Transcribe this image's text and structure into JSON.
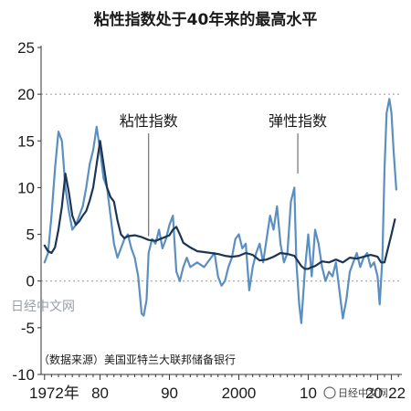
{
  "chart_data": {
    "type": "line",
    "title": "粘性指数处于40年来的最高水平",
    "source": "（数据来源）美国亚特兰大联邦储备银行",
    "ylim": [
      -10,
      25
    ],
    "xlim": [
      1971.5,
      2023.5
    ],
    "y_ticks": [
      -10,
      -5,
      0,
      5,
      10,
      15,
      20,
      25
    ],
    "y_tick_labels": [
      "-10",
      "-5",
      "0",
      "5",
      "10",
      "15",
      "20",
      "25"
    ],
    "x_ticks": [
      1972,
      1980,
      1990,
      2000,
      2010,
      2020,
      2022
    ],
    "x_tick_labels": [
      "1972年",
      "80",
      "90",
      "2000",
      "10",
      "20",
      "22"
    ],
    "grid": "horizontal dotted at 20 and 0",
    "annotations": [
      {
        "text": "粘性指数",
        "x": 1987,
        "y": 4.8
      },
      {
        "text": "弹性指数",
        "x": 2008.5,
        "y": 11.5
      }
    ],
    "colors": {
      "sticky": "#1c3557",
      "flexible": "#5b8fc0",
      "grid": "#999999",
      "axis": "#333333"
    },
    "series": [
      {
        "name": "粘性指数",
        "x": [
          1972,
          1972.5,
          1973,
          1973.5,
          1974,
          1974.5,
          1975,
          1975.5,
          1976,
          1976.5,
          1977,
          1977.5,
          1978,
          1978.5,
          1979,
          1979.5,
          1980,
          1980.5,
          1981,
          1981.5,
          1982,
          1982.5,
          1983,
          1983.5,
          1984,
          1985,
          1986,
          1987,
          1988,
          1989,
          1990,
          1990.5,
          1991,
          1991.5,
          1992,
          1993,
          1994,
          1995,
          1996,
          1997,
          1998,
          1999,
          2000,
          2001,
          2002,
          2003,
          2004,
          2005,
          2006,
          2007,
          2008,
          2009,
          2009.5,
          2010,
          2010.5,
          2011,
          2012,
          2013,
          2014,
          2015,
          2016,
          2017,
          2018,
          2019,
          2020,
          2020.5,
          2021,
          2021.5,
          2022,
          2022.5
        ],
        "values": [
          3.8,
          3.2,
          3.0,
          3.6,
          5.5,
          8.0,
          11.5,
          9.5,
          7.0,
          6.0,
          6.4,
          7.0,
          7.5,
          8.6,
          10.0,
          12.5,
          15.0,
          12.5,
          10.0,
          9.0,
          8.5,
          6.5,
          5.0,
          4.6,
          4.8,
          4.9,
          4.7,
          4.4,
          4.3,
          4.6,
          4.9,
          5.5,
          5.8,
          5.0,
          4.1,
          3.6,
          3.2,
          3.1,
          3.0,
          2.9,
          2.7,
          2.6,
          2.7,
          3.0,
          2.8,
          2.2,
          2.3,
          2.6,
          3.0,
          2.9,
          2.7,
          1.6,
          1.3,
          1.3,
          1.5,
          1.6,
          2.1,
          2.0,
          2.3,
          2.0,
          2.5,
          2.4,
          2.6,
          2.8,
          2.6,
          2.0,
          2.0,
          3.5,
          5.0,
          6.6
        ]
      },
      {
        "name": "弹性指数",
        "x": [
          1972,
          1972.5,
          1973,
          1973.5,
          1974,
          1974.5,
          1975,
          1975.5,
          1976,
          1976.5,
          1977,
          1977.5,
          1978,
          1978.5,
          1979,
          1979.5,
          1980,
          1980.5,
          1981,
          1981.5,
          1982,
          1982.5,
          1983,
          1983.5,
          1984,
          1984.5,
          1985,
          1985.5,
          1986,
          1986.3,
          1986.7,
          1987,
          1987.5,
          1988,
          1988.5,
          1989,
          1989.5,
          1990,
          1990.5,
          1991,
          1991.5,
          1992,
          1992.5,
          1993,
          1994,
          1995,
          1996,
          1996.5,
          1997,
          1997.5,
          1998,
          1998.5,
          1999,
          1999.5,
          2000,
          2000.5,
          2001,
          2001.5,
          2002,
          2002.5,
          2003,
          2003.5,
          2004,
          2004.5,
          2005,
          2005.5,
          2006,
          2006.5,
          2007,
          2007.5,
          2008,
          2008.3,
          2008.7,
          2009,
          2009.5,
          2010,
          2010.5,
          2011,
          2011.5,
          2012,
          2012.5,
          2013,
          2013.5,
          2014,
          2014.5,
          2015,
          2015.5,
          2016,
          2016.5,
          2017,
          2017.5,
          2018,
          2018.5,
          2019,
          2019.5,
          2020,
          2020.3,
          2020.7,
          2021,
          2021.3,
          2021.7,
          2022,
          2022.3,
          2022.7
        ],
        "values": [
          2.0,
          3.0,
          7.0,
          12.0,
          16.0,
          15.0,
          10.0,
          7.5,
          5.5,
          6.0,
          7.0,
          8.0,
          10.0,
          12.5,
          14.0,
          16.5,
          14.0,
          11.0,
          10.0,
          7.0,
          4.0,
          2.5,
          3.5,
          4.5,
          5.0,
          3.5,
          2.5,
          0.5,
          -3.5,
          -3.7,
          -2.0,
          3.0,
          4.5,
          4.0,
          5.5,
          3.5,
          4.5,
          6.0,
          7.0,
          1.0,
          0.0,
          1.5,
          2.5,
          1.5,
          2.0,
          1.5,
          2.5,
          3.0,
          0.5,
          -0.5,
          0.0,
          1.5,
          2.5,
          4.5,
          5.0,
          3.5,
          4.0,
          -1.0,
          1.5,
          3.0,
          4.0,
          2.0,
          4.5,
          7.0,
          5.5,
          8.0,
          4.0,
          2.0,
          3.0,
          8.5,
          10.0,
          2.0,
          -2.5,
          -4.5,
          1.0,
          5.0,
          0.5,
          5.5,
          4.0,
          1.5,
          0.0,
          1.0,
          0.5,
          2.0,
          -1.0,
          -4.0,
          -2.0,
          1.0,
          2.0,
          3.0,
          1.5,
          2.5,
          3.0,
          1.5,
          2.0,
          0.5,
          -2.5,
          2.5,
          12.0,
          18.0,
          19.5,
          18.0,
          14.0,
          9.8
        ]
      }
    ]
  },
  "watermark": {
    "left": "日经中文网",
    "right": "日经中文网"
  }
}
